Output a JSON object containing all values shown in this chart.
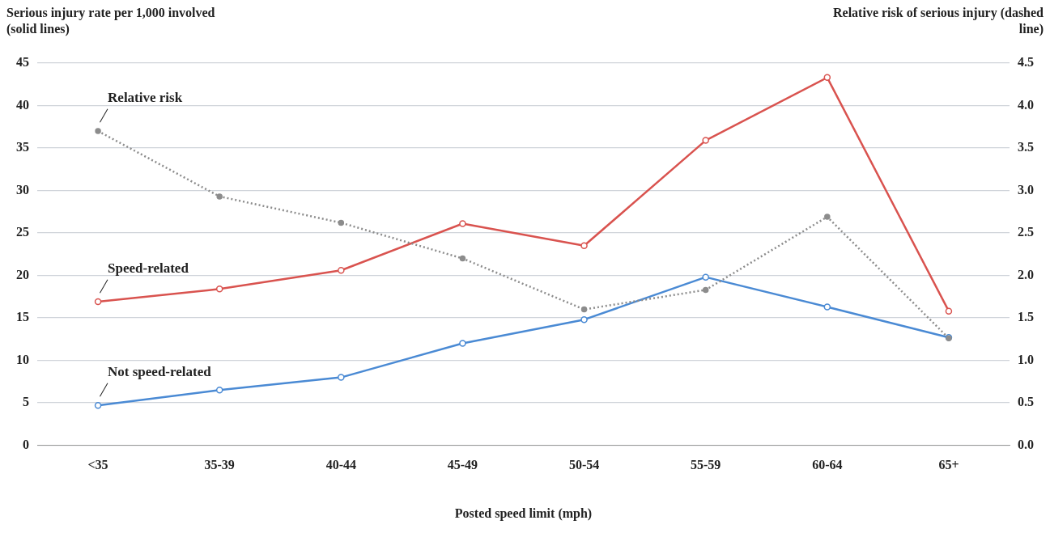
{
  "chart_data": {
    "type": "line",
    "xlabel": "Posted speed limit (mph)",
    "ylabel": "Serious injury rate per 1,000 involved (solid lines)",
    "y2label": "Relative risk of serious injury (dashed line)",
    "categories": [
      "<35",
      "35-39",
      "40-44",
      "45-49",
      "50-54",
      "55-59",
      "60-64",
      "65+"
    ],
    "series": [
      {
        "name": "Relative risk",
        "color": "#8c8c8c",
        "axis": "y2",
        "line_style": "dotted",
        "marker": "circle",
        "values": [
          3.7,
          2.93,
          2.62,
          2.2,
          1.6,
          1.83,
          2.69,
          1.26
        ]
      },
      {
        "name": "Speed-related",
        "color": "#d9534f",
        "line_style": "solid",
        "marker": "circle",
        "values": [
          16.9,
          18.4,
          20.6,
          26.1,
          23.5,
          35.9,
          43.3,
          15.8
        ]
      },
      {
        "name": "Not speed-related",
        "color": "#4a8ad4",
        "line_style": "solid",
        "marker": "circle",
        "values": [
          4.7,
          6.5,
          8.0,
          12.0,
          14.8,
          19.8,
          16.3,
          12.7
        ]
      }
    ],
    "ylim": [
      0,
      45
    ],
    "yticks": [
      0,
      5,
      10,
      15,
      20,
      25,
      30,
      35,
      40,
      45
    ],
    "y2lim": [
      0,
      4.5
    ],
    "y2ticks": [
      {
        "value": 0,
        "label": "0.0"
      },
      {
        "value": 0.5,
        "label": "0.5"
      },
      {
        "value": 1,
        "label": "1.0"
      },
      {
        "value": 1.5,
        "label": "1.5"
      },
      {
        "value": 2,
        "label": "2.0"
      },
      {
        "value": 2.5,
        "label": "2.5"
      },
      {
        "value": 3,
        "label": "3.0"
      },
      {
        "value": 3.5,
        "label": "3.5"
      },
      {
        "value": 4,
        "label": "4.0"
      },
      {
        "value": 4.5,
        "label": "4.5"
      }
    ],
    "grid": "y",
    "legend": false
  }
}
